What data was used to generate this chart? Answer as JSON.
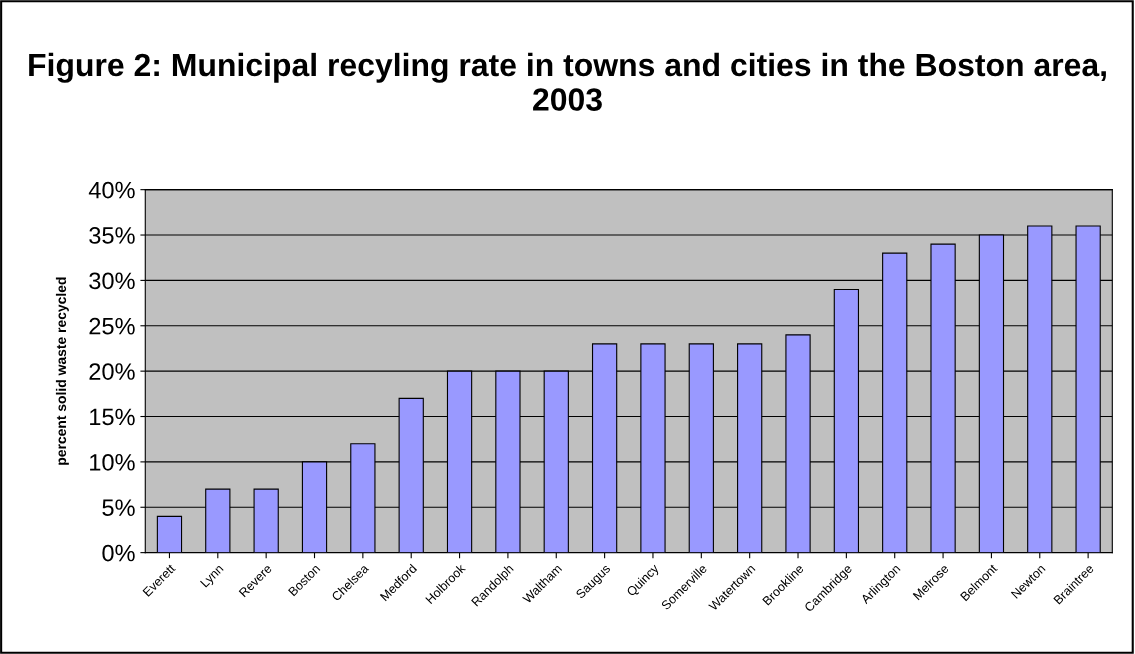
{
  "chart_data": {
    "type": "bar",
    "title": "Figure 2: Municipal recyling rate in towns and cities in the Boston area, 2003",
    "ylabel": "percent solid waste recycled",
    "categories": [
      "Everett",
      "Lynn",
      "Revere",
      "Boston",
      "Chelsea",
      "Medford",
      "Holbrook",
      "Randolph",
      "Waltham",
      "Saugus",
      "Quincy",
      "Somerville",
      "Watertown",
      "Brookline",
      "Cambridge",
      "Arlington",
      "Melrose",
      "Belmont",
      "Newton",
      "Braintree"
    ],
    "values": [
      4,
      7,
      7,
      10,
      12,
      17,
      20,
      20,
      20,
      23,
      23,
      23,
      23,
      24,
      29,
      33,
      34,
      35,
      36,
      36
    ],
    "color": "#9999ff",
    "ylim": [
      0,
      40
    ],
    "yticks": [
      {
        "value": 0,
        "label": "0%"
      },
      {
        "value": 5,
        "label": "5%"
      },
      {
        "value": 10,
        "label": "10%"
      },
      {
        "value": 15,
        "label": "15%"
      },
      {
        "value": 20,
        "label": "20%"
      },
      {
        "value": 25,
        "label": "25%"
      },
      {
        "value": 30,
        "label": "30%"
      },
      {
        "value": 35,
        "label": "35%"
      },
      {
        "value": 40,
        "label": "40%"
      }
    ],
    "grid": "y",
    "legend": false
  }
}
